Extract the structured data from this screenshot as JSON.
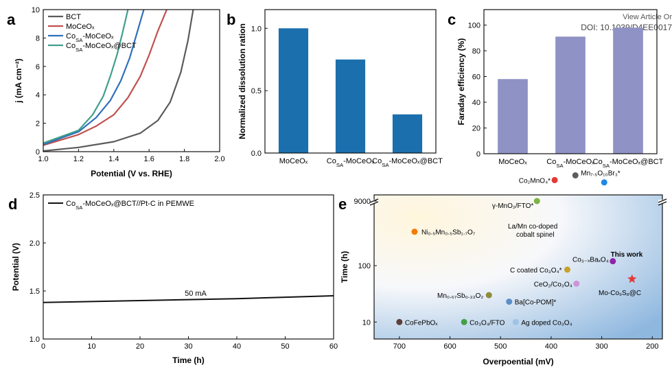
{
  "watermark": {
    "line1": "View Article Or",
    "line2": "DOI: 10.1039/D4EE0017"
  },
  "chart_data": [
    {
      "panel": "a",
      "type": "line",
      "xlabel": "Potential (V vs. RHE)",
      "ylabel": "j (mA cm⁻²)",
      "xlim": [
        1.0,
        2.0
      ],
      "ylim": [
        0,
        10
      ],
      "xticks": [
        "1.0",
        "1.2",
        "1.4",
        "1.6",
        "1.8",
        "2.0"
      ],
      "yticks": [
        "0",
        "2",
        "4",
        "6",
        "8",
        "10"
      ],
      "legend_position": "top-left",
      "series": [
        {
          "name": "BCT",
          "color": "#5a5a5a",
          "x": [
            1.0,
            1.2,
            1.4,
            1.55,
            1.65,
            1.72,
            1.78,
            1.82,
            1.85
          ],
          "y": [
            0.05,
            0.3,
            0.7,
            1.3,
            2.2,
            3.5,
            5.6,
            7.8,
            10
          ]
        },
        {
          "name": "MoCeOₓ",
          "color": "#c0504d",
          "x": [
            1.0,
            1.2,
            1.3,
            1.4,
            1.48,
            1.55,
            1.6,
            1.65,
            1.7
          ],
          "y": [
            0.45,
            1.2,
            1.8,
            2.6,
            3.8,
            5.3,
            6.8,
            8.5,
            10
          ]
        },
        {
          "name": "Co_SA-MoCeOₓ",
          "color": "#2e6fba",
          "x": [
            1.0,
            1.2,
            1.3,
            1.38,
            1.44,
            1.49,
            1.53,
            1.57
          ],
          "y": [
            0.5,
            1.4,
            2.4,
            3.6,
            5.0,
            6.6,
            8.3,
            10
          ]
        },
        {
          "name": "Co_SA-MoCeOₓ@BCT",
          "color": "#3f9e8c",
          "x": [
            1.0,
            1.2,
            1.28,
            1.34,
            1.38,
            1.42,
            1.45,
            1.48
          ],
          "y": [
            0.6,
            1.5,
            2.6,
            3.9,
            5.3,
            6.9,
            8.4,
            10
          ]
        }
      ]
    },
    {
      "panel": "b",
      "type": "bar",
      "ylabel": "Normalized dissolution ration",
      "ylim": [
        0,
        1.15
      ],
      "yticks": [
        "0.0",
        "0.5",
        "1.0"
      ],
      "categories": [
        "MoCeOₓ",
        "Co_SA-MoCeOₓ",
        "Co_SA-MoCeOₓ@BCT"
      ],
      "values": [
        1.0,
        0.75,
        0.31
      ],
      "color": "#1b6fad"
    },
    {
      "panel": "c",
      "type": "bar",
      "ylabel": "Faraday efficiency (%)",
      "ylim": [
        0,
        112
      ],
      "yticks": [
        "0",
        "20",
        "40",
        "60",
        "80",
        "100"
      ],
      "categories": [
        "MoCeOₓ",
        "Co_SA-MoCeOₓ",
        "Co_SA-MoCeOₓ@BCT"
      ],
      "values": [
        58,
        91,
        98
      ],
      "color": "#8e92c4"
    },
    {
      "panel": "d",
      "type": "line",
      "xlabel": "Time (h)",
      "ylabel": "Potential (V)",
      "xlim": [
        0,
        60
      ],
      "ylim": [
        1.0,
        2.5
      ],
      "xticks": [
        "0",
        "10",
        "20",
        "30",
        "40",
        "50",
        "60"
      ],
      "yticks": [
        "1.0",
        "1.5",
        "2.0",
        "2.5"
      ],
      "legend_position": "top-left",
      "annotation": "50 mA",
      "series": [
        {
          "name": "Co_SA-MoCeOₓ@BCT//Pt-C in PEMWE",
          "color": "#111111",
          "x": [
            0,
            10,
            20,
            30,
            40,
            50,
            60
          ],
          "y": [
            1.38,
            1.39,
            1.4,
            1.41,
            1.42,
            1.435,
            1.45
          ]
        }
      ]
    },
    {
      "panel": "e",
      "type": "scatter",
      "xlabel": "Overpoential  (mV)",
      "ylabel": "Time (h)",
      "xlim": [
        750,
        180
      ],
      "y_scale": "log",
      "ylim": [
        5,
        9000
      ],
      "xticks": [
        "700",
        "600",
        "500",
        "400",
        "300",
        "200"
      ],
      "yticks": [
        "10",
        "100",
        "9000"
      ],
      "points": [
        {
          "label": "γ-MnO₂/FTO*",
          "x": 428,
          "y": 9000,
          "color": "#7cb342"
        },
        {
          "label": "Mn₇.₅O₁₀Br₃*",
          "x": 352,
          "y": 4000,
          "color": "#5d5d5d"
        },
        {
          "label": "Co₂MnO₄*",
          "x": 393,
          "y": 3300,
          "color": "#e53935"
        },
        {
          "label": "La/Mn co-doped cobalt spinel",
          "x": 295,
          "y": 3000,
          "color": "#1e88e5"
        },
        {
          "label": "Ni₀.₅Mn₀.₅Sb₁.₇O₇",
          "x": 670,
          "y": 400,
          "color": "#f57c00"
        },
        {
          "label": "Co₃₋ₓBaₓO₄",
          "x": 278,
          "y": 120,
          "color": "#8e24aa"
        },
        {
          "label": "C coated Co₃O₄*",
          "x": 368,
          "y": 85,
          "color": "#c8a02a"
        },
        {
          "label": "This work",
          "x": 240,
          "y": 58,
          "color": "#e53935",
          "marker": "star"
        },
        {
          "label": "CeO₂/Co₃O₄",
          "x": 350,
          "y": 48,
          "color": "#ce93d8"
        },
        {
          "label": "Mn₀.₆₇Sb₀.₃₃O₂",
          "x": 523,
          "y": 30,
          "color": "#8d8d3a"
        },
        {
          "label": "Ba[Co-POM]*",
          "x": 483,
          "y": 23,
          "color": "#5c8ec7"
        },
        {
          "label": "Mo-Co₉S₈@C",
          "x": 455,
          "y": 23,
          "color": "#5c8ec7",
          "hidden_marker": true
        },
        {
          "label": "CoFePbOₓ",
          "x": 700,
          "y": 10,
          "color": "#5d4037"
        },
        {
          "label": "Co₃O₄/FTO",
          "x": 572,
          "y": 10,
          "color": "#43a047"
        },
        {
          "label": "Ag doped Co₃O₄",
          "x": 470,
          "y": 10,
          "color": "#9ec3e6"
        }
      ]
    }
  ]
}
